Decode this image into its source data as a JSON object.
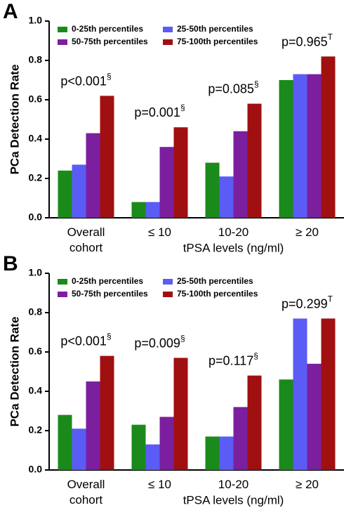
{
  "chart_data": [
    {
      "type": "bar",
      "panel_label": "A",
      "ylabel": "PCa Detection Rate",
      "xlabel": "tPSA levels (ng/ml)",
      "categories": [
        "Overall cohort",
        "≤ 10",
        "10-20",
        "≥ 20"
      ],
      "series": [
        {
          "name": "0-25th percentiles",
          "color": "#1a8a1a",
          "values": [
            0.24,
            0.08,
            0.28,
            0.7
          ]
        },
        {
          "name": "25-50th percentiles",
          "color": "#5b5bf5",
          "values": [
            0.27,
            0.08,
            0.21,
            0.73
          ]
        },
        {
          "name": "50-75th percentiles",
          "color": "#7b1f9e",
          "values": [
            0.43,
            0.36,
            0.44,
            0.73
          ]
        },
        {
          "name": "75-100th percentiles",
          "color": "#a01010",
          "values": [
            0.62,
            0.46,
            0.58,
            0.82
          ]
        }
      ],
      "annotations": [
        {
          "text": "p<0.001",
          "sup": "§"
        },
        {
          "text": "p=0.001",
          "sup": "§"
        },
        {
          "text": "p=0.085",
          "sup": "§"
        },
        {
          "text": "p=0.965",
          "sup": "T"
        }
      ],
      "ylim": [
        0,
        1
      ],
      "yticks": [
        {
          "value": 0,
          "label": "0.0"
        },
        0.2,
        0.4,
        0.6,
        0.8,
        {
          "value": 1,
          "label": "1.0"
        }
      ],
      "grid": false,
      "legend": "upper left"
    },
    {
      "type": "bar",
      "panel_label": "B",
      "ylabel": "PCa Detection Rate",
      "xlabel": "tPSA levels (ng/ml)",
      "categories": [
        "Overall cohort",
        "≤ 10",
        "10-20",
        "≥ 20"
      ],
      "series": [
        {
          "name": "0-25th percentiles",
          "color": "#1a8a1a",
          "values": [
            0.28,
            0.23,
            0.17,
            0.46
          ]
        },
        {
          "name": "25-50th percentiles",
          "color": "#5b5bf5",
          "values": [
            0.21,
            0.13,
            0.17,
            0.77
          ]
        },
        {
          "name": "50-75th percentiles",
          "color": "#7b1f9e",
          "values": [
            0.45,
            0.27,
            0.32,
            0.54
          ]
        },
        {
          "name": "75-100th percentiles",
          "color": "#a01010",
          "values": [
            0.58,
            0.57,
            0.48,
            0.77
          ]
        }
      ],
      "annotations": [
        {
          "text": "p<0.001",
          "sup": "§"
        },
        {
          "text": "p=0.009",
          "sup": "§"
        },
        {
          "text": "p=0.117",
          "sup": "§"
        },
        {
          "text": "p=0.299",
          "sup": "T"
        }
      ],
      "ylim": [
        0,
        1
      ],
      "yticks": [
        {
          "value": 0,
          "label": "0.0"
        },
        0.2,
        0.4,
        0.6,
        0.8,
        {
          "value": 1,
          "label": "1.0"
        }
      ],
      "grid": false,
      "legend": "upper left"
    }
  ]
}
